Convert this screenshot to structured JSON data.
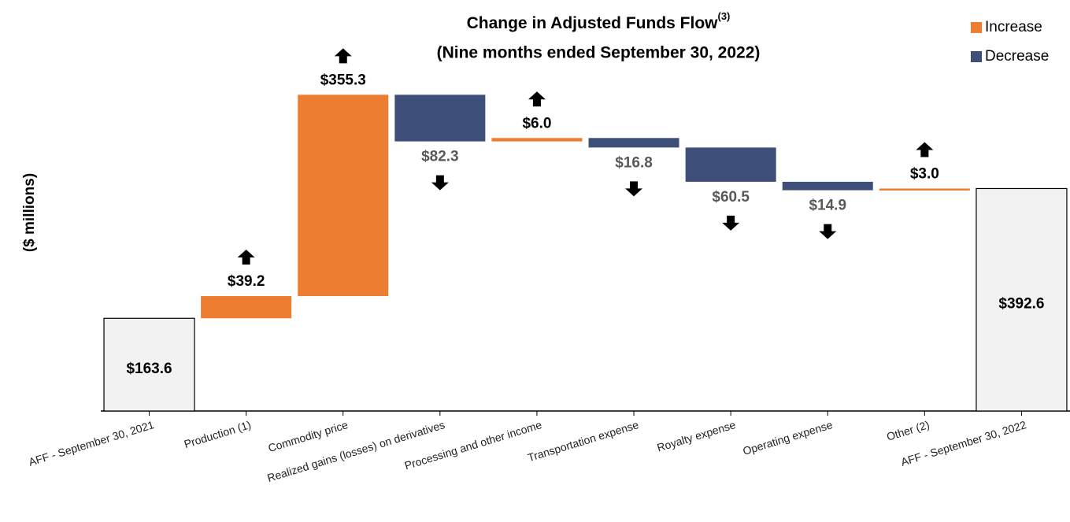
{
  "chart_data": {
    "type": "waterfall",
    "title": "Change in Adjusted Funds Flow",
    "title_note": "(3)",
    "subtitle": "(Nine months ended September 30, 2022)",
    "y_label": "($ millions)",
    "categories": [
      "AFF - September 30, 2021",
      "Production (1)",
      "Commodity price",
      "Realized gains (losses) on derivatives",
      "Processing and other income",
      "Transportation expense",
      "Royalty expense",
      "Operating expense",
      "Other (2)",
      "AFF - September 30, 2022"
    ],
    "totals": {
      "color": "#f2f2f2",
      "values": [
        163.6,
        null,
        null,
        null,
        null,
        null,
        null,
        null,
        null,
        392.6
      ],
      "value_labels": [
        "$163.6",
        null,
        null,
        null,
        null,
        null,
        null,
        null,
        null,
        "$392.6"
      ]
    },
    "series": [
      {
        "name": "Increase",
        "color": "#ed7d31",
        "values": [
          null,
          39.2,
          355.3,
          null,
          6.0,
          null,
          null,
          null,
          3.0,
          null
        ],
        "value_labels": [
          null,
          "$39.2",
          "$355.3",
          null,
          "$6.0",
          null,
          null,
          null,
          "$3.0",
          null
        ]
      },
      {
        "name": "Decrease",
        "color": "#3d4f78",
        "values": [
          null,
          null,
          null,
          82.3,
          null,
          16.8,
          60.5,
          14.9,
          null,
          null
        ],
        "value_labels": [
          null,
          null,
          null,
          "$82.3",
          null,
          "$16.8",
          "$60.5",
          "$14.9",
          null,
          null
        ]
      }
    ],
    "ylim": [
      0,
      560
    ]
  }
}
